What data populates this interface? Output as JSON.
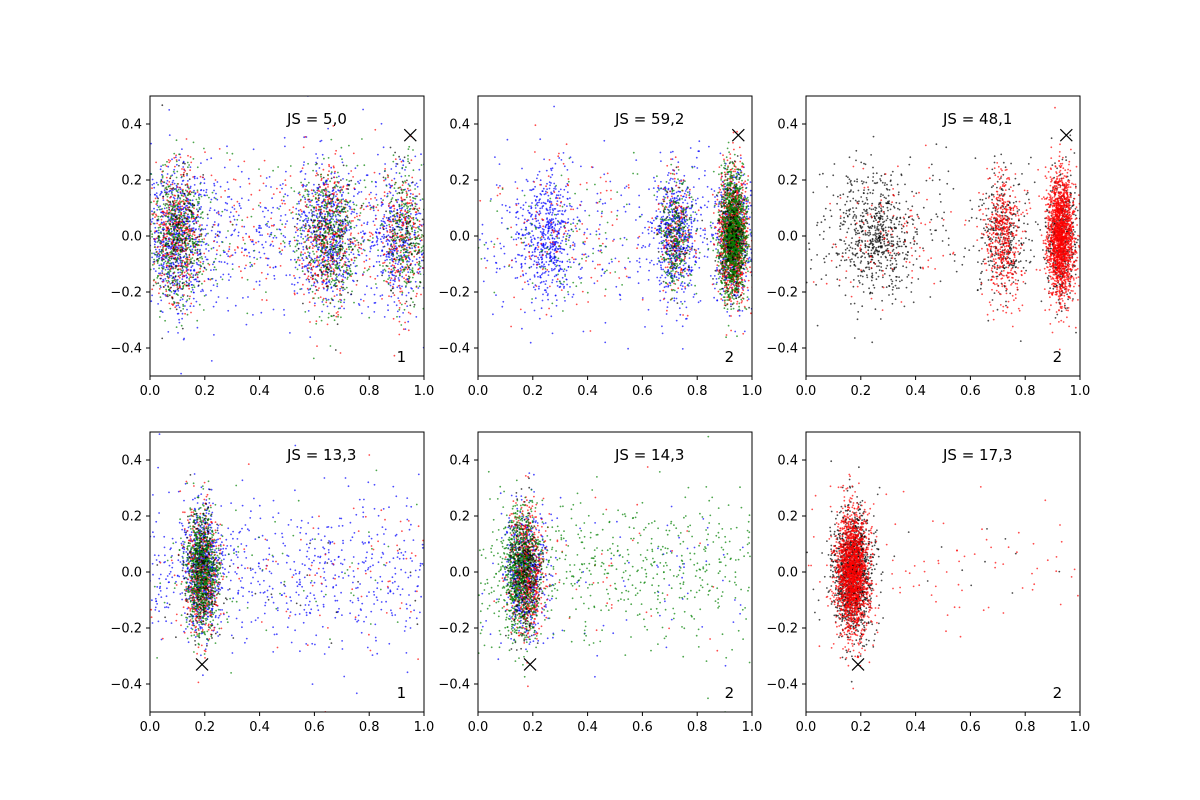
{
  "chart_data": [
    {
      "type": "scatter",
      "annotation": "JS = 5,0",
      "corner_label": "1",
      "xlim": [
        0,
        1
      ],
      "ylim": [
        -0.5,
        0.5
      ],
      "xticks": [
        "0.0",
        "0.2",
        "0.4",
        "0.6",
        "0.8",
        "1.0"
      ],
      "yticks": [
        "-0.4",
        "-0.2",
        "0.0",
        "0.2",
        "0.4"
      ],
      "marker": {
        "symbol": "x",
        "x": 0.95,
        "y": 0.36
      },
      "series": [
        {
          "color": "#0000ff",
          "clusters": [
            {
              "cx": 0.1,
              "sx": 0.05,
              "sy": 0.22,
              "n": 550
            },
            {
              "cx": 0.65,
              "sx": 0.05,
              "sy": 0.22,
              "n": 450
            },
            {
              "cx": 0.9,
              "sx": 0.04,
              "sy": 0.22,
              "n": 250
            },
            {
              "cx": 0.5,
              "sx": 0.3,
              "sy": 0.25,
              "n": 700
            }
          ]
        },
        {
          "color": "#ff0000",
          "clusters": [
            {
              "cx": 0.1,
              "sx": 0.05,
              "sy": 0.22,
              "n": 380
            },
            {
              "cx": 0.65,
              "sx": 0.05,
              "sy": 0.22,
              "n": 320
            },
            {
              "cx": 0.92,
              "sx": 0.04,
              "sy": 0.22,
              "n": 220
            },
            {
              "cx": 0.5,
              "sx": 0.3,
              "sy": 0.25,
              "n": 280
            }
          ]
        },
        {
          "color": "#008000",
          "clusters": [
            {
              "cx": 0.1,
              "sx": 0.05,
              "sy": 0.22,
              "n": 500
            },
            {
              "cx": 0.66,
              "sx": 0.05,
              "sy": 0.22,
              "n": 420
            },
            {
              "cx": 0.93,
              "sx": 0.04,
              "sy": 0.22,
              "n": 260
            },
            {
              "cx": 0.5,
              "sx": 0.3,
              "sy": 0.25,
              "n": 160
            }
          ]
        },
        {
          "color": "#000000",
          "clusters": [
            {
              "cx": 0.1,
              "sx": 0.05,
              "sy": 0.22,
              "n": 150
            },
            {
              "cx": 0.65,
              "sx": 0.05,
              "sy": 0.22,
              "n": 130
            },
            {
              "cx": 0.92,
              "sx": 0.04,
              "sy": 0.22,
              "n": 90
            }
          ]
        }
      ]
    },
    {
      "type": "scatter",
      "annotation": "JS = 59,2",
      "corner_label": "2",
      "xlim": [
        0,
        1
      ],
      "ylim": [
        -0.5,
        0.5
      ],
      "xticks": [
        "0.0",
        "0.2",
        "0.4",
        "0.6",
        "0.8",
        "1.0"
      ],
      "yticks": [
        "-0.4",
        "-0.2",
        "0.0",
        "0.2",
        "0.4"
      ],
      "marker": {
        "symbol": "x",
        "x": 0.95,
        "y": 0.36
      },
      "series": [
        {
          "color": "#0000ff",
          "clusters": [
            {
              "cx": 0.25,
              "sx": 0.05,
              "sy": 0.2,
              "n": 500
            },
            {
              "cx": 0.72,
              "sx": 0.04,
              "sy": 0.2,
              "n": 550
            },
            {
              "cx": 0.93,
              "sx": 0.03,
              "sy": 0.2,
              "n": 500
            },
            {
              "cx": 0.5,
              "sx": 0.3,
              "sy": 0.25,
              "n": 350
            }
          ]
        },
        {
          "color": "#ff0000",
          "clusters": [
            {
              "cx": 0.72,
              "sx": 0.03,
              "sy": 0.2,
              "n": 180
            },
            {
              "cx": 0.93,
              "sx": 0.025,
              "sy": 0.2,
              "n": 1100
            },
            {
              "cx": 0.3,
              "sx": 0.15,
              "sy": 0.25,
              "n": 150
            }
          ]
        },
        {
          "color": "#008000",
          "clusters": [
            {
              "cx": 0.72,
              "sx": 0.03,
              "sy": 0.2,
              "n": 280
            },
            {
              "cx": 0.93,
              "sx": 0.025,
              "sy": 0.2,
              "n": 1300
            },
            {
              "cx": 0.3,
              "sx": 0.15,
              "sy": 0.22,
              "n": 120
            }
          ]
        },
        {
          "color": "#000000",
          "clusters": [
            {
              "cx": 0.93,
              "sx": 0.025,
              "sy": 0.2,
              "n": 220
            },
            {
              "cx": 0.72,
              "sx": 0.03,
              "sy": 0.2,
              "n": 60
            }
          ]
        }
      ]
    },
    {
      "type": "scatter",
      "annotation": "JS = 48,1",
      "corner_label": "2",
      "xlim": [
        0,
        1
      ],
      "ylim": [
        -0.5,
        0.5
      ],
      "xticks": [
        "0.0",
        "0.2",
        "0.4",
        "0.6",
        "0.8",
        "1.0"
      ],
      "yticks": [
        "-0.4",
        "-0.2",
        "0.0",
        "0.2",
        "0.4"
      ],
      "marker": {
        "symbol": "x",
        "x": 0.95,
        "y": 0.36
      },
      "series": [
        {
          "color": "#000000",
          "clusters": [
            {
              "cx": 0.25,
              "sx": 0.07,
              "sy": 0.2,
              "n": 600
            },
            {
              "cx": 0.72,
              "sx": 0.04,
              "sy": 0.2,
              "n": 300
            },
            {
              "cx": 0.93,
              "sx": 0.025,
              "sy": 0.2,
              "n": 400
            },
            {
              "cx": 0.5,
              "sx": 0.3,
              "sy": 0.25,
              "n": 250
            }
          ]
        },
        {
          "color": "#ff0000",
          "clusters": [
            {
              "cx": 0.72,
              "sx": 0.035,
              "sy": 0.2,
              "n": 500
            },
            {
              "cx": 0.93,
              "sx": 0.025,
              "sy": 0.2,
              "n": 1800
            },
            {
              "cx": 0.3,
              "sx": 0.12,
              "sy": 0.22,
              "n": 120
            }
          ]
        }
      ]
    },
    {
      "type": "scatter",
      "annotation": "JS = 13,3",
      "corner_label": "1",
      "xlim": [
        0,
        1
      ],
      "ylim": [
        -0.5,
        0.5
      ],
      "xticks": [
        "0.0",
        "0.2",
        "0.4",
        "0.6",
        "0.8",
        "1.0"
      ],
      "yticks": [
        "-0.4",
        "-0.2",
        "0.0",
        "0.2",
        "0.4"
      ],
      "marker": {
        "symbol": "x",
        "x": 0.19,
        "y": -0.33
      },
      "series": [
        {
          "color": "#0000ff",
          "clusters": [
            {
              "cx": 0.19,
              "sx": 0.03,
              "sy": 0.2,
              "n": 650
            },
            {
              "cx": 0.55,
              "sx": 0.25,
              "sy": 0.24,
              "n": 650
            }
          ]
        },
        {
          "color": "#ff0000",
          "clusters": [
            {
              "cx": 0.19,
              "sx": 0.03,
              "sy": 0.2,
              "n": 500
            },
            {
              "cx": 0.55,
              "sx": 0.25,
              "sy": 0.24,
              "n": 100
            }
          ]
        },
        {
          "color": "#008000",
          "clusters": [
            {
              "cx": 0.19,
              "sx": 0.03,
              "sy": 0.2,
              "n": 800
            },
            {
              "cx": 0.55,
              "sx": 0.25,
              "sy": 0.24,
              "n": 60
            }
          ]
        },
        {
          "color": "#000000",
          "clusters": [
            {
              "cx": 0.19,
              "sx": 0.03,
              "sy": 0.2,
              "n": 200
            },
            {
              "cx": 0.55,
              "sx": 0.25,
              "sy": 0.24,
              "n": 30
            }
          ]
        }
      ]
    },
    {
      "type": "scatter",
      "annotation": "JS = 14,3",
      "corner_label": "2",
      "xlim": [
        0,
        1
      ],
      "ylim": [
        -0.5,
        0.5
      ],
      "xticks": [
        "0.0",
        "0.2",
        "0.4",
        "0.6",
        "0.8",
        "1.0"
      ],
      "yticks": [
        "-0.4",
        "-0.2",
        "0.0",
        "0.2",
        "0.4"
      ],
      "marker": {
        "symbol": "x",
        "x": 0.19,
        "y": -0.33
      },
      "series": [
        {
          "color": "#0000ff",
          "clusters": [
            {
              "cx": 0.17,
              "sx": 0.035,
              "sy": 0.2,
              "n": 650
            },
            {
              "cx": 0.5,
              "sx": 0.25,
              "sy": 0.24,
              "n": 80
            }
          ]
        },
        {
          "color": "#ff0000",
          "clusters": [
            {
              "cx": 0.18,
              "sx": 0.03,
              "sy": 0.2,
              "n": 650
            },
            {
              "cx": 0.45,
              "sx": 0.2,
              "sy": 0.24,
              "n": 40
            }
          ]
        },
        {
          "color": "#008000",
          "clusters": [
            {
              "cx": 0.16,
              "sx": 0.035,
              "sy": 0.2,
              "n": 800
            },
            {
              "cx": 0.5,
              "sx": 0.22,
              "sy": 0.24,
              "n": 550
            }
          ]
        },
        {
          "color": "#000000",
          "clusters": [
            {
              "cx": 0.17,
              "sx": 0.03,
              "sy": 0.2,
              "n": 250
            }
          ]
        }
      ]
    },
    {
      "type": "scatter",
      "annotation": "JS = 17,3",
      "corner_label": "2",
      "xlim": [
        0,
        1
      ],
      "ylim": [
        -0.5,
        0.5
      ],
      "xticks": [
        "0.0",
        "0.2",
        "0.4",
        "0.6",
        "0.8",
        "1.0"
      ],
      "yticks": [
        "-0.4",
        "-0.2",
        "0.0",
        "0.2",
        "0.4"
      ],
      "marker": {
        "symbol": "x",
        "x": 0.19,
        "y": -0.33
      },
      "series": [
        {
          "color": "#000000",
          "clusters": [
            {
              "cx": 0.17,
              "sx": 0.035,
              "sy": 0.2,
              "n": 1300
            },
            {
              "cx": 0.5,
              "sx": 0.25,
              "sy": 0.24,
              "n": 20
            }
          ]
        },
        {
          "color": "#ff0000",
          "clusters": [
            {
              "cx": 0.17,
              "sx": 0.03,
              "sy": 0.2,
              "n": 1800
            },
            {
              "cx": 0.6,
              "sx": 0.22,
              "sy": 0.24,
              "n": 90
            }
          ]
        }
      ]
    }
  ]
}
